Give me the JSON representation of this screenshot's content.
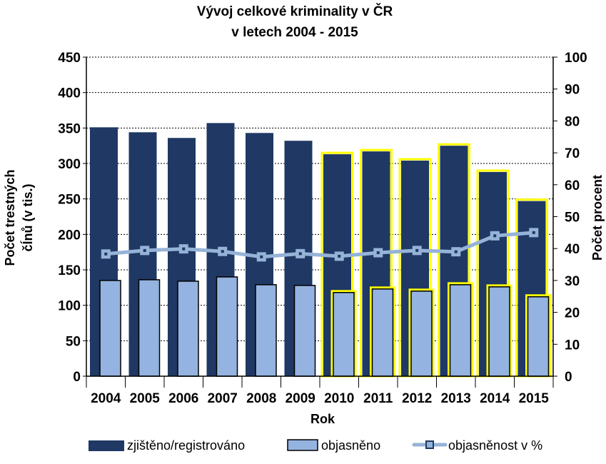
{
  "chart_data": {
    "type": "bar",
    "title_line1": "Vývoj celkové kriminality v ČR",
    "title_line2": "v letech 2004 - 2015",
    "xlabel": "Rok",
    "ylabel_left_line1": "Počet trestných",
    "ylabel_left_line2": "čÍnů (v tis.)",
    "ylabel_right": "Počet procent",
    "categories": [
      "2004",
      "2005",
      "2006",
      "2007",
      "2008",
      "2009",
      "2010",
      "2011",
      "2012",
      "2013",
      "2014",
      "2015"
    ],
    "ylim_left": [
      0,
      450
    ],
    "yticks_left": [
      "0",
      "50",
      "100",
      "150",
      "200",
      "250",
      "300",
      "350",
      "400",
      "450"
    ],
    "ylim_right": [
      0,
      100
    ],
    "yticks_right": [
      "0",
      "10",
      "20",
      "30",
      "40",
      "50",
      "60",
      "70",
      "80",
      "90",
      "100"
    ],
    "grid": true,
    "legend_position": "bottom",
    "highlighted_categories": [
      "2010",
      "2011",
      "2012",
      "2013",
      "2014",
      "2015"
    ],
    "series": [
      {
        "name": "zjištěno/registrováno",
        "type": "bar",
        "axis": "left",
        "color": "#1f3864",
        "values": [
          351,
          344,
          336,
          357,
          343,
          332,
          313,
          317,
          304,
          325,
          288,
          247
        ]
      },
      {
        "name": "objasněno",
        "type": "bar",
        "axis": "left",
        "color": "#95b3e0",
        "values": [
          135,
          136,
          134,
          140,
          129,
          128,
          118,
          123,
          120,
          129,
          126,
          112
        ]
      },
      {
        "name": "objasněnost v %",
        "type": "line",
        "axis": "right",
        "color": "#95b3d7",
        "values": [
          38.3,
          39.4,
          39.9,
          39.1,
          37.4,
          38.4,
          37.6,
          38.7,
          39.4,
          39.0,
          44.0,
          45.0
        ]
      }
    ],
    "colors": {
      "highlight_outline": "#ffff00",
      "marker_core": "#1f3864"
    }
  }
}
